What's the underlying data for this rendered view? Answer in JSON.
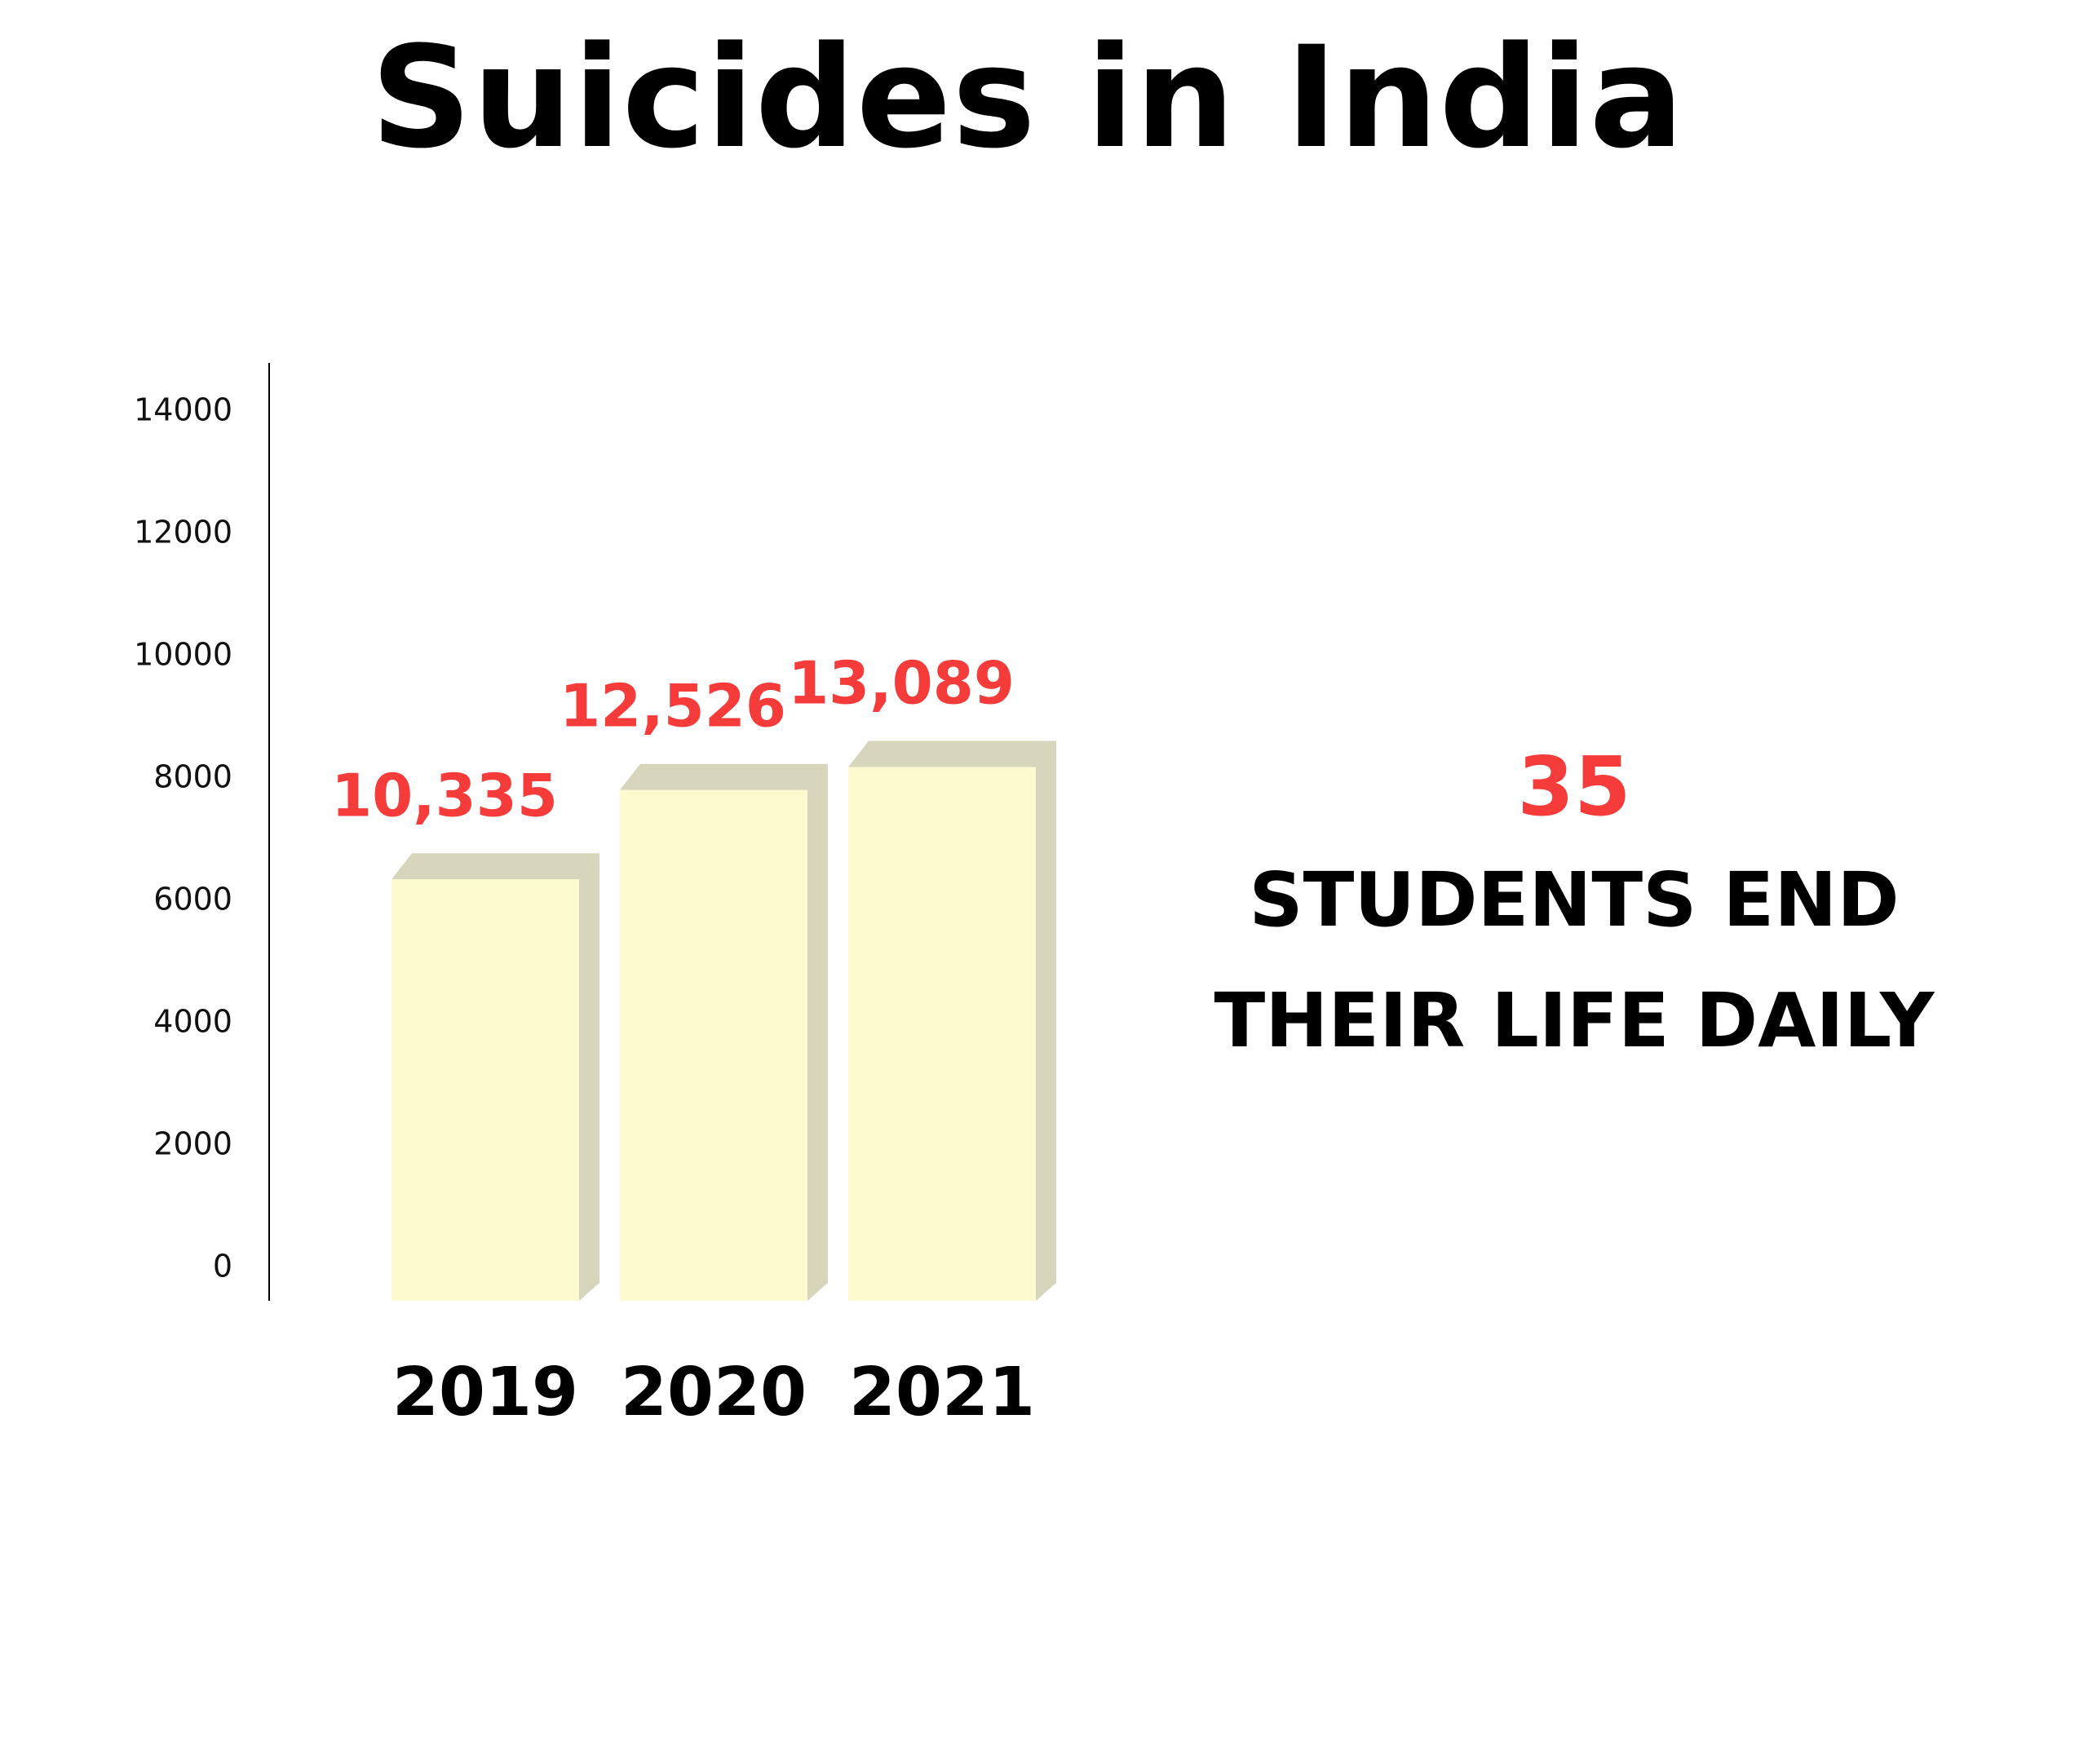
{
  "title": "Suicides in India",
  "colors": {
    "bar_face": "#FEFACF",
    "bar_side": "#D7D5BB",
    "value_label": "#F63B3B",
    "axis_line": "#000000"
  },
  "chart_data": {
    "type": "bar",
    "title": "Suicides in India",
    "categories": [
      "2019",
      "2020",
      "2021"
    ],
    "values": [
      10335,
      12526,
      13089
    ],
    "value_labels": [
      "10,335",
      "12,526",
      "13,089"
    ],
    "y_ticks": [
      "0",
      "2000",
      "4000",
      "6000",
      "8000",
      "10000",
      "12000",
      "14000"
    ],
    "ylim": [
      0,
      14000
    ],
    "xlabel": "",
    "ylabel": "",
    "grid": false,
    "legend": "none"
  },
  "stat": {
    "number": "35",
    "line1": "STUDENTS END",
    "line2": "THEIR LIFE DAILY"
  }
}
